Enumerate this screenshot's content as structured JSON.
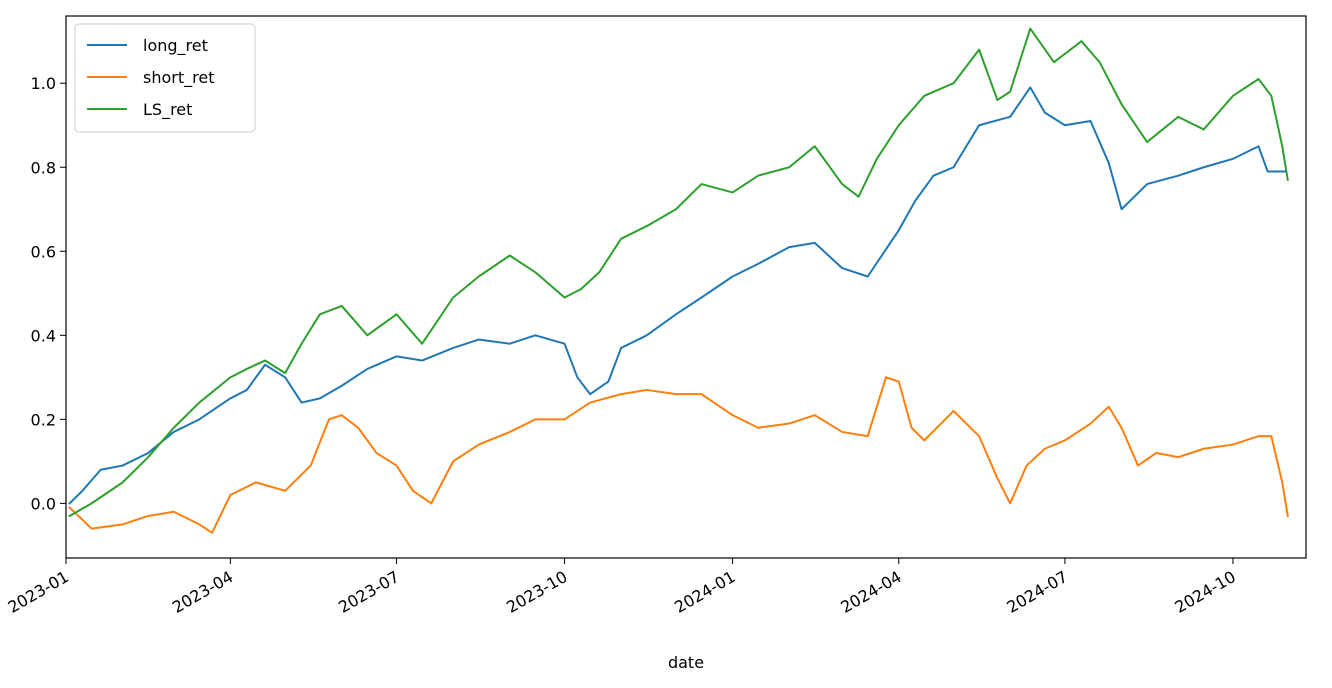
{
  "chart_data": {
    "type": "line",
    "xlabel": "date",
    "ylabel": "",
    "title": "",
    "xlim": [
      "2023-01-01",
      "2024-11-10"
    ],
    "ylim": [
      -0.13,
      1.16
    ],
    "grid": false,
    "legend_position": "top-left",
    "x_ticks": [
      {
        "date": "2023-01-01",
        "label": "2023-01"
      },
      {
        "date": "2023-04-01",
        "label": "2023-04"
      },
      {
        "date": "2023-07-01",
        "label": "2023-07"
      },
      {
        "date": "2023-10-01",
        "label": "2023-10"
      },
      {
        "date": "2024-01-01",
        "label": "2024-01"
      },
      {
        "date": "2024-04-01",
        "label": "2024-04"
      },
      {
        "date": "2024-07-01",
        "label": "2024-07"
      },
      {
        "date": "2024-10-01",
        "label": "2024-10"
      }
    ],
    "y_ticks": [
      {
        "value": 0.0,
        "label": "0.0"
      },
      {
        "value": 0.2,
        "label": "0.2"
      },
      {
        "value": 0.4,
        "label": "0.4"
      },
      {
        "value": 0.6,
        "label": "0.6"
      },
      {
        "value": 0.8,
        "label": "0.8"
      },
      {
        "value": 1.0,
        "label": "1.0"
      }
    ],
    "series": [
      {
        "name": "long_ret",
        "color": "#1f77b4",
        "points": [
          [
            "2023-01-03",
            0.0
          ],
          [
            "2023-01-10",
            0.03
          ],
          [
            "2023-01-20",
            0.08
          ],
          [
            "2023-02-01",
            0.09
          ],
          [
            "2023-02-15",
            0.12
          ],
          [
            "2023-03-01",
            0.17
          ],
          [
            "2023-03-15",
            0.2
          ],
          [
            "2023-04-01",
            0.25
          ],
          [
            "2023-04-10",
            0.27
          ],
          [
            "2023-04-20",
            0.33
          ],
          [
            "2023-05-01",
            0.3
          ],
          [
            "2023-05-10",
            0.24
          ],
          [
            "2023-05-20",
            0.25
          ],
          [
            "2023-06-01",
            0.28
          ],
          [
            "2023-06-15",
            0.32
          ],
          [
            "2023-07-01",
            0.35
          ],
          [
            "2023-07-15",
            0.34
          ],
          [
            "2023-08-01",
            0.37
          ],
          [
            "2023-08-15",
            0.39
          ],
          [
            "2023-09-01",
            0.38
          ],
          [
            "2023-09-15",
            0.4
          ],
          [
            "2023-10-01",
            0.38
          ],
          [
            "2023-10-08",
            0.3
          ],
          [
            "2023-10-15",
            0.26
          ],
          [
            "2023-10-25",
            0.29
          ],
          [
            "2023-11-01",
            0.37
          ],
          [
            "2023-11-15",
            0.4
          ],
          [
            "2023-12-01",
            0.45
          ],
          [
            "2023-12-15",
            0.49
          ],
          [
            "2024-01-01",
            0.54
          ],
          [
            "2024-01-15",
            0.57
          ],
          [
            "2024-02-01",
            0.61
          ],
          [
            "2024-02-15",
            0.62
          ],
          [
            "2024-03-01",
            0.56
          ],
          [
            "2024-03-15",
            0.54
          ],
          [
            "2024-04-01",
            0.65
          ],
          [
            "2024-04-10",
            0.72
          ],
          [
            "2024-04-20",
            0.78
          ],
          [
            "2024-05-01",
            0.8
          ],
          [
            "2024-05-15",
            0.9
          ],
          [
            "2024-06-01",
            0.92
          ],
          [
            "2024-06-12",
            0.99
          ],
          [
            "2024-06-20",
            0.93
          ],
          [
            "2024-07-01",
            0.9
          ],
          [
            "2024-07-15",
            0.91
          ],
          [
            "2024-07-25",
            0.81
          ],
          [
            "2024-08-01",
            0.7
          ],
          [
            "2024-08-15",
            0.76
          ],
          [
            "2024-09-01",
            0.78
          ],
          [
            "2024-09-15",
            0.8
          ],
          [
            "2024-10-01",
            0.82
          ],
          [
            "2024-10-15",
            0.85
          ],
          [
            "2024-10-20",
            0.79
          ],
          [
            "2024-10-30",
            0.79
          ]
        ]
      },
      {
        "name": "short_ret",
        "color": "#ff7f0e",
        "points": [
          [
            "2023-01-03",
            -0.01
          ],
          [
            "2023-01-15",
            -0.06
          ],
          [
            "2023-02-01",
            -0.05
          ],
          [
            "2023-02-15",
            -0.03
          ],
          [
            "2023-03-01",
            -0.02
          ],
          [
            "2023-03-15",
            -0.05
          ],
          [
            "2023-03-22",
            -0.07
          ],
          [
            "2023-04-01",
            0.02
          ],
          [
            "2023-04-15",
            0.05
          ],
          [
            "2023-05-01",
            0.03
          ],
          [
            "2023-05-15",
            0.09
          ],
          [
            "2023-05-25",
            0.2
          ],
          [
            "2023-06-01",
            0.21
          ],
          [
            "2023-06-10",
            0.18
          ],
          [
            "2023-06-20",
            0.12
          ],
          [
            "2023-07-01",
            0.09
          ],
          [
            "2023-07-10",
            0.03
          ],
          [
            "2023-07-20",
            0.0
          ],
          [
            "2023-08-01",
            0.1
          ],
          [
            "2023-08-15",
            0.14
          ],
          [
            "2023-09-01",
            0.17
          ],
          [
            "2023-09-15",
            0.2
          ],
          [
            "2023-10-01",
            0.2
          ],
          [
            "2023-10-15",
            0.24
          ],
          [
            "2023-11-01",
            0.26
          ],
          [
            "2023-11-15",
            0.27
          ],
          [
            "2023-12-01",
            0.26
          ],
          [
            "2023-12-15",
            0.26
          ],
          [
            "2024-01-01",
            0.21
          ],
          [
            "2024-01-15",
            0.18
          ],
          [
            "2024-02-01",
            0.19
          ],
          [
            "2024-02-15",
            0.21
          ],
          [
            "2024-03-01",
            0.17
          ],
          [
            "2024-03-15",
            0.16
          ],
          [
            "2024-03-25",
            0.3
          ],
          [
            "2024-04-01",
            0.29
          ],
          [
            "2024-04-08",
            0.18
          ],
          [
            "2024-04-15",
            0.15
          ],
          [
            "2024-05-01",
            0.22
          ],
          [
            "2024-05-15",
            0.16
          ],
          [
            "2024-05-25",
            0.06
          ],
          [
            "2024-06-01",
            0.0
          ],
          [
            "2024-06-10",
            0.09
          ],
          [
            "2024-06-20",
            0.13
          ],
          [
            "2024-07-01",
            0.15
          ],
          [
            "2024-07-15",
            0.19
          ],
          [
            "2024-07-25",
            0.23
          ],
          [
            "2024-08-01",
            0.18
          ],
          [
            "2024-08-10",
            0.09
          ],
          [
            "2024-08-20",
            0.12
          ],
          [
            "2024-09-01",
            0.11
          ],
          [
            "2024-09-15",
            0.13
          ],
          [
            "2024-10-01",
            0.14
          ],
          [
            "2024-10-15",
            0.16
          ],
          [
            "2024-10-22",
            0.16
          ],
          [
            "2024-10-28",
            0.05
          ],
          [
            "2024-10-31",
            -0.03
          ]
        ]
      },
      {
        "name": "LS_ret",
        "color": "#2ca02c",
        "points": [
          [
            "2023-01-03",
            -0.03
          ],
          [
            "2023-01-15",
            0.0
          ],
          [
            "2023-02-01",
            0.05
          ],
          [
            "2023-02-15",
            0.11
          ],
          [
            "2023-03-01",
            0.18
          ],
          [
            "2023-03-15",
            0.24
          ],
          [
            "2023-04-01",
            0.3
          ],
          [
            "2023-04-10",
            0.32
          ],
          [
            "2023-04-20",
            0.34
          ],
          [
            "2023-05-01",
            0.31
          ],
          [
            "2023-05-10",
            0.38
          ],
          [
            "2023-05-20",
            0.45
          ],
          [
            "2023-06-01",
            0.47
          ],
          [
            "2023-06-15",
            0.4
          ],
          [
            "2023-07-01",
            0.45
          ],
          [
            "2023-07-15",
            0.38
          ],
          [
            "2023-08-01",
            0.49
          ],
          [
            "2023-08-15",
            0.54
          ],
          [
            "2023-09-01",
            0.59
          ],
          [
            "2023-09-15",
            0.55
          ],
          [
            "2023-10-01",
            0.49
          ],
          [
            "2023-10-10",
            0.51
          ],
          [
            "2023-10-20",
            0.55
          ],
          [
            "2023-11-01",
            0.63
          ],
          [
            "2023-11-15",
            0.66
          ],
          [
            "2023-12-01",
            0.7
          ],
          [
            "2023-12-15",
            0.76
          ],
          [
            "2024-01-01",
            0.74
          ],
          [
            "2024-01-15",
            0.78
          ],
          [
            "2024-02-01",
            0.8
          ],
          [
            "2024-02-15",
            0.85
          ],
          [
            "2024-03-01",
            0.76
          ],
          [
            "2024-03-10",
            0.73
          ],
          [
            "2024-03-20",
            0.82
          ],
          [
            "2024-04-01",
            0.9
          ],
          [
            "2024-04-15",
            0.97
          ],
          [
            "2024-05-01",
            1.0
          ],
          [
            "2024-05-15",
            1.08
          ],
          [
            "2024-05-25",
            0.96
          ],
          [
            "2024-06-01",
            0.98
          ],
          [
            "2024-06-12",
            1.13
          ],
          [
            "2024-06-25",
            1.05
          ],
          [
            "2024-07-10",
            1.1
          ],
          [
            "2024-07-20",
            1.05
          ],
          [
            "2024-08-01",
            0.95
          ],
          [
            "2024-08-15",
            0.86
          ],
          [
            "2024-09-01",
            0.92
          ],
          [
            "2024-09-15",
            0.89
          ],
          [
            "2024-10-01",
            0.97
          ],
          [
            "2024-10-15",
            1.01
          ],
          [
            "2024-10-22",
            0.97
          ],
          [
            "2024-10-28",
            0.85
          ],
          [
            "2024-10-31",
            0.77
          ]
        ]
      }
    ]
  }
}
